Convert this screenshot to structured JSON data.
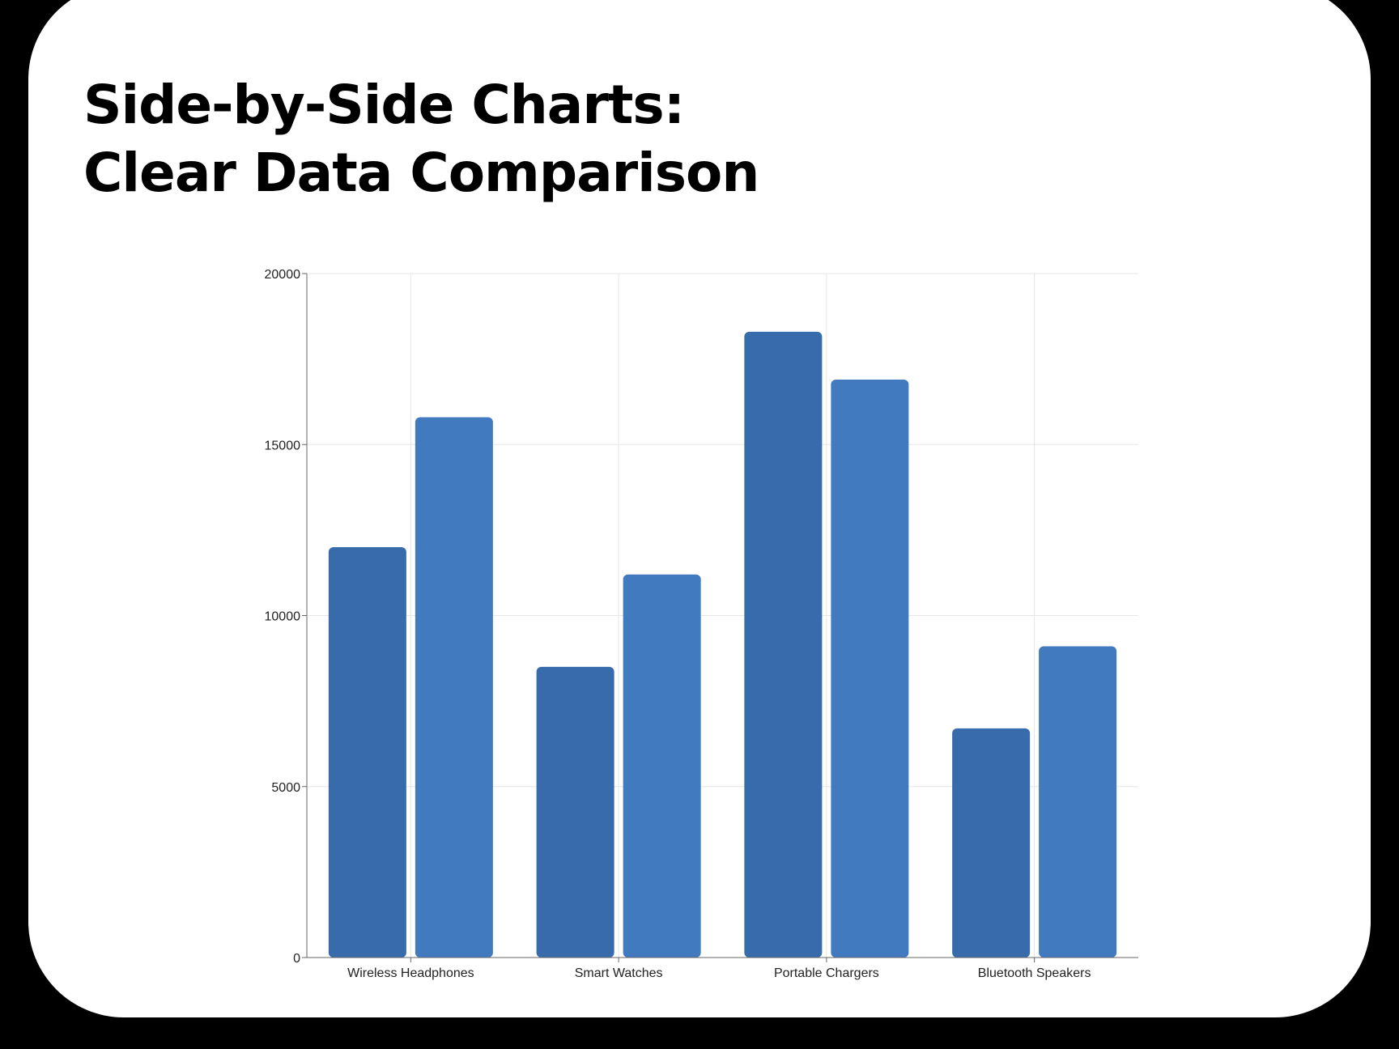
{
  "title_line1": "Side-by-Side Charts:",
  "title_line2": "Clear Data Comparison",
  "colors": {
    "background": "#000000",
    "card": "#ffffff",
    "grid": "#e6e6e6",
    "axis": "#666666"
  },
  "chart_data": {
    "type": "bar",
    "categories": [
      "Wireless Headphones",
      "Smart Watches",
      "Portable Chargers",
      "Bluetooth Speakers"
    ],
    "series": [
      {
        "color": "#376bab",
        "values": [
          12000,
          8500,
          18300,
          6700
        ]
      },
      {
        "color": "#417abe",
        "values": [
          15800,
          11200,
          16900,
          9100
        ]
      }
    ],
    "ylim": [
      0,
      20000
    ],
    "yticks": [
      0,
      5000,
      10000,
      15000,
      20000
    ],
    "grid": true,
    "legend": "none"
  }
}
